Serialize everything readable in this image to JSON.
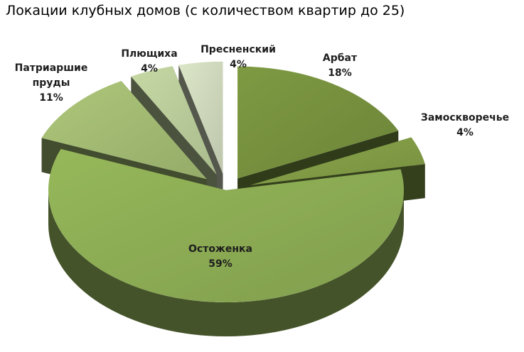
{
  "chart_data": {
    "type": "pie",
    "title": "Локации клубных домов (с количеством квартир до 25)",
    "slices": [
      {
        "label": "Арбат",
        "value": 18,
        "value_label": "18%",
        "color": "#7e9a42"
      },
      {
        "label": "Замоскворечье",
        "value": 4,
        "value_label": "4%",
        "color": "#8aa64a"
      },
      {
        "label": "Остоженка",
        "value": 59,
        "value_label": "59%",
        "color": "#96b85a"
      },
      {
        "label": "Патриаршие пруды",
        "value": 11,
        "value_label": "11%",
        "color": "#adc77a"
      },
      {
        "label": "Плющиха",
        "value": 4,
        "value_label": "4%",
        "color": "#c6d9a4"
      },
      {
        "label": "Пресненский",
        "value": 4,
        "value_label": "4%",
        "color": "#dce6c8"
      }
    ],
    "label_lines": {
      "Арбат": [
        "Арбат",
        "18%"
      ],
      "Замоскворечье": [
        "Замоскворечье",
        "4%"
      ],
      "Остоженка": [
        "Остоженка",
        "59%"
      ],
      "Патриаршие пруды": [
        "Патриаршие",
        "пруды",
        "11%"
      ],
      "Плющиха": [
        "Плющиха",
        "4%"
      ],
      "Пресненский": [
        "Пресненский",
        "4%"
      ]
    },
    "style": "3d-exploded"
  }
}
